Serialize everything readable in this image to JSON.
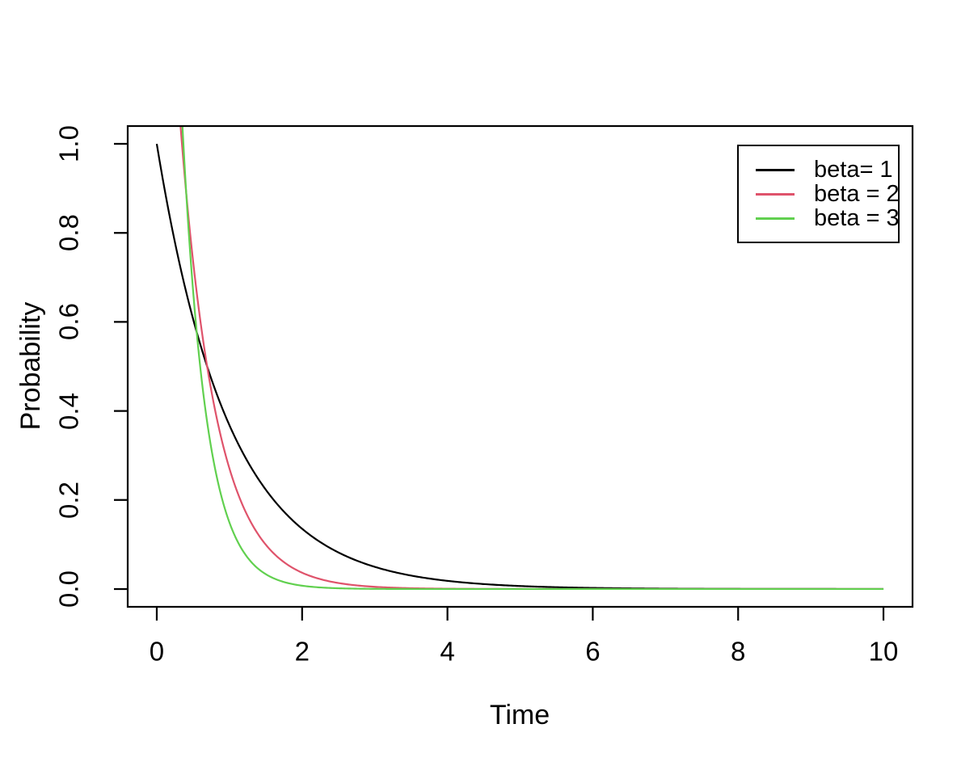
{
  "chart_data": {
    "type": "line",
    "xlabel": "Time",
    "ylabel": "Probability",
    "x_ticks": [
      "0",
      "2",
      "4",
      "6",
      "8",
      "10"
    ],
    "x_tick_values": [
      0,
      2,
      4,
      6,
      8,
      10
    ],
    "y_ticks": [
      "0.0",
      "0.2",
      "0.4",
      "0.6",
      "0.8",
      "1.0"
    ],
    "y_tick_values": [
      0,
      0.2,
      0.4,
      0.6,
      0.8,
      1.0
    ],
    "xlim": [
      -0.4,
      10.4
    ],
    "ylim": [
      -0.04,
      1.04
    ],
    "x_data_range": [
      0,
      10
    ],
    "grid": false,
    "axis_color": "#000000",
    "background_color": "#ffffff",
    "legend": {
      "position": "top-right",
      "border": true,
      "entries": [
        {
          "label": "beta= 1",
          "color": "#000000"
        },
        {
          "label": "beta = 2",
          "color": "#DF536B"
        },
        {
          "label": "beta = 3",
          "color": "#61D04F"
        }
      ]
    },
    "series": [
      {
        "name": "beta= 1",
        "beta": 1,
        "color": "#000000",
        "formula": "P(t) = beta * exp(-beta * t)",
        "points": [
          [
            0,
            1.0
          ],
          [
            0.25,
            0.779
          ],
          [
            0.5,
            0.607
          ],
          [
            0.75,
            0.472
          ],
          [
            1,
            0.368
          ],
          [
            1.5,
            0.223
          ],
          [
            2,
            0.135
          ],
          [
            2.5,
            0.082
          ],
          [
            3,
            0.05
          ],
          [
            4,
            0.018
          ],
          [
            5,
            0.007
          ],
          [
            6,
            0.002
          ],
          [
            8,
            0.0003
          ],
          [
            10,
            5e-05
          ]
        ]
      },
      {
        "name": "beta = 2",
        "beta": 2,
        "color": "#DF536B",
        "formula": "P(t) = beta * exp(-beta * t)",
        "points": [
          [
            0,
            2.0
          ],
          [
            0.25,
            1.213
          ],
          [
            0.5,
            0.736
          ],
          [
            0.75,
            0.446
          ],
          [
            1,
            0.271
          ],
          [
            1.5,
            0.1
          ],
          [
            2,
            0.037
          ],
          [
            2.5,
            0.013
          ],
          [
            3,
            0.005
          ],
          [
            4,
            0.001
          ],
          [
            6,
            0
          ],
          [
            10,
            0
          ]
        ]
      },
      {
        "name": "beta = 3",
        "beta": 3,
        "color": "#61D04F",
        "formula": "P(t) = beta * exp(-beta * t)",
        "points": [
          [
            0,
            3.0
          ],
          [
            0.25,
            1.417
          ],
          [
            0.5,
            0.669
          ],
          [
            0.75,
            0.316
          ],
          [
            1,
            0.149
          ],
          [
            1.5,
            0.033
          ],
          [
            2,
            0.007
          ],
          [
            3,
            0.0004
          ],
          [
            10,
            0
          ]
        ]
      }
    ]
  }
}
